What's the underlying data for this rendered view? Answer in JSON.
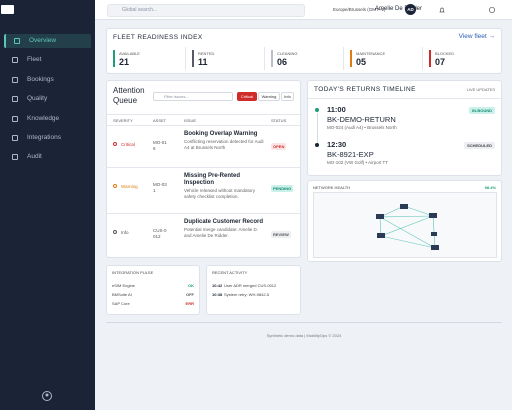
{
  "sidebar": {
    "nav": [
      "Overview",
      "Fleet",
      "Bookings",
      "Quality",
      "Knowledge",
      "Integrations",
      "Audit"
    ]
  },
  "topbar": {
    "search_placeholder": "Global search...",
    "timezone": "Europe/Brussels (GMT+1)",
    "user": "Amelie De Ridder",
    "initials": "AD"
  },
  "fleet": {
    "title": "FLEET READINESS INDEX",
    "link": "View fleet →",
    "stats": [
      {
        "label": "AVAILABLE",
        "value": "21",
        "color": "#1f9d7a"
      },
      {
        "label": "RENTED",
        "value": "11",
        "color": "#555b66"
      },
      {
        "label": "CLEANING",
        "value": "06",
        "color": "#b9bec8"
      },
      {
        "label": "MAINTENANCE",
        "value": "05",
        "color": "#e07b12"
      },
      {
        "label": "BLOCKED",
        "value": "07",
        "color": "#d02b2b"
      }
    ]
  },
  "queue": {
    "title": "Attention Queue",
    "filter_placeholder": "Filter issues...",
    "filters": [
      "Critical",
      "Warning",
      "Info"
    ],
    "columns": [
      "SEVERITY",
      "ASSET",
      "ISSUE",
      "STATUS"
    ],
    "rows": [
      {
        "severity": "Critical",
        "asset": "MO-016",
        "issue": "Booking Overlap Warning",
        "detail": "Conflicting reservation detected for Audi A4 at Brussels North",
        "status": "OPEN"
      },
      {
        "severity": "Warning",
        "asset": "MO-031",
        "issue": "Missing Pre-Rented Inspection",
        "detail": "Vehicle released without mandatory safety checklist completion.",
        "status": "PENDING"
      },
      {
        "severity": "Info",
        "asset": "CUS-0012",
        "issue": "Duplicate Customer Record",
        "detail": "Potential merge candidate: Amelie D. and Amelie De Ridder.",
        "status": "REVIEW"
      }
    ]
  },
  "returns": {
    "title": "TODAY'S RETURNS TIMELINE",
    "tag": "LIVE UPDATES",
    "items": [
      {
        "time": "11:00",
        "booking": "BK-DEMO-RETURN",
        "detail": "MO-024 (Audi A4) • Brussels North",
        "status": "IN-BOUND"
      },
      {
        "time": "12:30",
        "booking": "BK-8921-EXP",
        "detail": "MO-102 (VW Golf) • Airport TT",
        "status": "SCHEDULED"
      }
    ]
  },
  "network": {
    "title": "NETWORK HEALTH",
    "value": "98.4%"
  },
  "integrations": {
    "title": "INTEGRATION PULSE",
    "items": [
      {
        "name": "eSIM Engine",
        "status": "OK"
      },
      {
        "name": "BMSuite AI",
        "status": "OFF"
      },
      {
        "name": "SAP Core",
        "status": "ERR"
      }
    ]
  },
  "activity": {
    "title": "RECENT ACTIVITY",
    "items": [
      {
        "time": "10:42",
        "text": "User ADR merged CUS-0012"
      },
      {
        "time": "10:38",
        "text": "System retry: WH-9842-5"
      }
    ]
  },
  "footer": "Synthetic demo data | MobilityOps © 2024"
}
